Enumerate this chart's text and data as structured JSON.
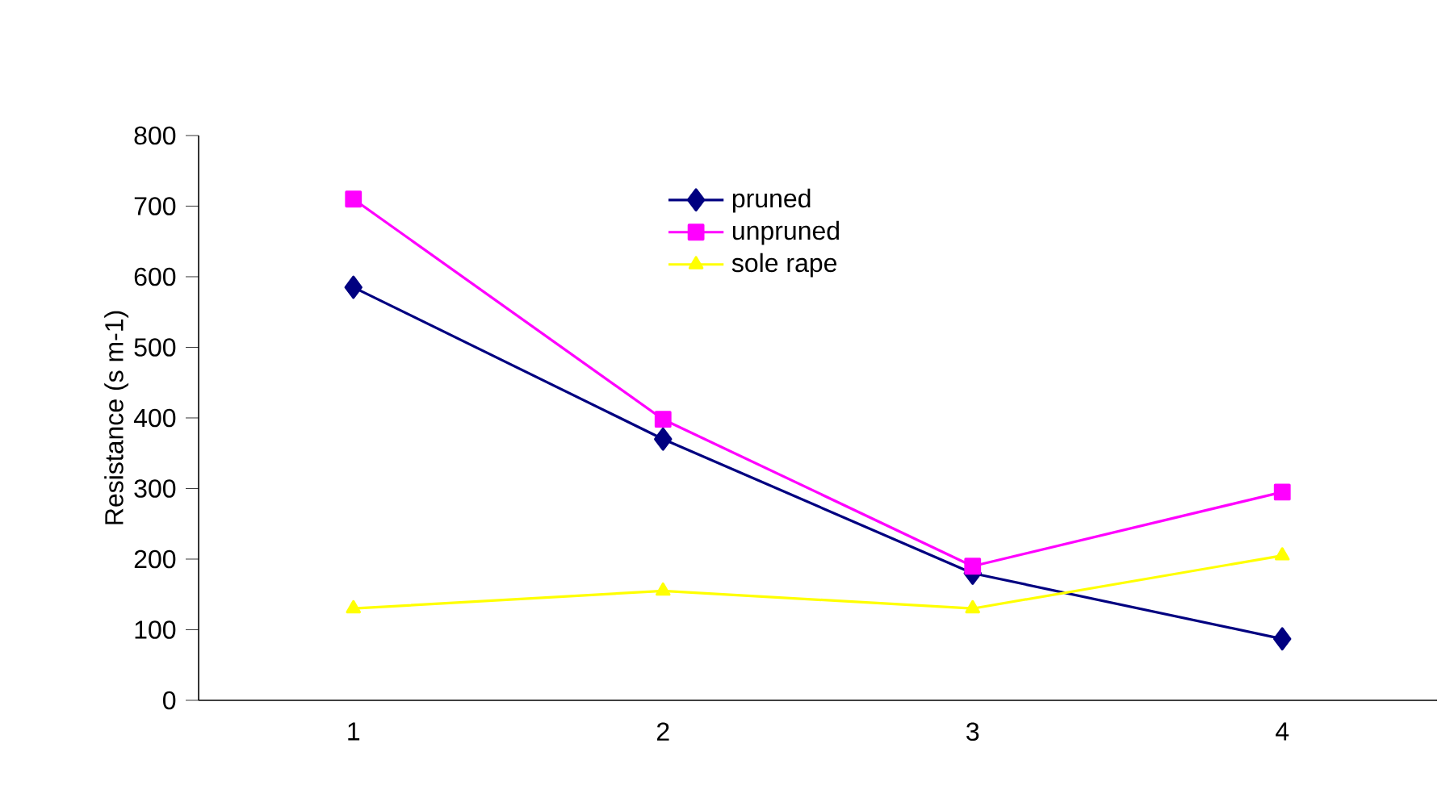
{
  "chart_data": {
    "type": "line",
    "ylabel": "Resistance (s m-1)",
    "categories": [
      "1",
      "2",
      "3",
      "4"
    ],
    "series": [
      {
        "name": "pruned",
        "color": "#000080",
        "marker": "diamond",
        "values": [
          585,
          370,
          180,
          87
        ]
      },
      {
        "name": "unpruned",
        "color": "#ff00ff",
        "marker": "square",
        "values": [
          710,
          398,
          190,
          295
        ]
      },
      {
        "name": "sole rape",
        "color": "#ffff00",
        "marker": "triangle",
        "values": [
          130,
          155,
          130,
          205
        ]
      }
    ],
    "ylim": [
      0,
      800
    ],
    "yticks": [
      0,
      100,
      200,
      300,
      400,
      500,
      600,
      700,
      800
    ],
    "legend": "top"
  }
}
